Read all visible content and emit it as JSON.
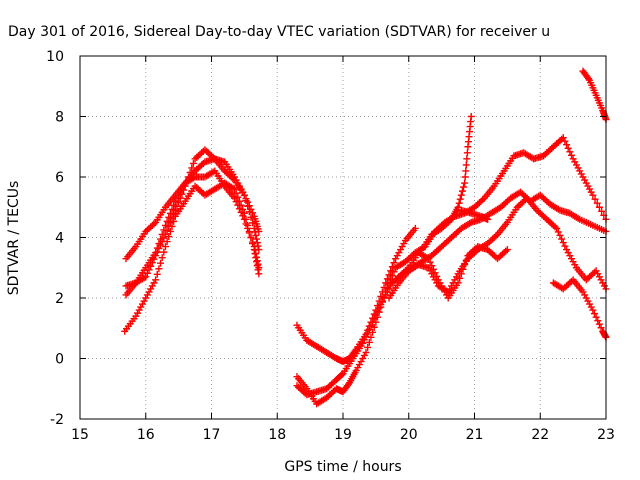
{
  "chart_data": {
    "type": "scatter",
    "title": "Day 301 of 2016, Sidereal Day-to-day VTEC variation (SDTVAR) for receiver u",
    "xlabel": "GPS time / hours",
    "ylabel": "SDTVAR / TECUs",
    "xlim": [
      15,
      23
    ],
    "ylim": [
      -2,
      10
    ],
    "xticks": [
      15,
      16,
      17,
      18,
      19,
      20,
      21,
      22,
      23
    ],
    "yticks": [
      -2,
      0,
      2,
      4,
      6,
      8,
      10
    ],
    "grid": true,
    "marker": "plus",
    "color": "#ff0000",
    "series": [
      {
        "x": [
          15.7,
          15.85,
          16.0,
          16.15,
          16.3,
          16.45,
          16.6,
          16.75,
          16.9,
          17.05,
          17.2,
          17.35,
          17.5,
          17.65,
          17.72
        ],
        "y": [
          3.3,
          3.7,
          4.2,
          4.5,
          5.0,
          5.4,
          5.8,
          6.2,
          6.5,
          6.6,
          6.5,
          6.0,
          5.4,
          4.7,
          4.2
        ]
      },
      {
        "x": [
          15.7,
          15.85,
          16.0,
          16.15,
          16.3,
          16.45,
          16.6,
          16.75,
          16.9,
          17.05,
          17.2,
          17.35,
          17.5,
          17.65,
          17.72
        ],
        "y": [
          2.4,
          2.5,
          2.7,
          3.4,
          4.1,
          4.9,
          5.7,
          6.6,
          6.9,
          6.6,
          6.2,
          5.9,
          5.4,
          4.3,
          3.6
        ]
      },
      {
        "x": [
          15.7,
          15.85,
          16.0,
          16.15,
          16.3,
          16.45,
          16.6,
          16.75,
          16.9,
          17.05,
          17.2,
          17.35,
          17.5,
          17.65,
          17.72
        ],
        "y": [
          2.1,
          2.5,
          3.0,
          3.5,
          4.4,
          5.2,
          5.8,
          6.0,
          6.0,
          6.2,
          5.7,
          5.3,
          4.6,
          3.7,
          3.0
        ]
      },
      {
        "x": [
          15.68,
          15.85,
          16.0,
          16.15,
          16.3,
          16.45,
          16.6,
          16.75,
          16.9,
          17.05,
          17.2,
          17.35,
          17.5,
          17.65,
          17.72
        ],
        "y": [
          0.9,
          1.4,
          2.0,
          2.6,
          3.7,
          4.7,
          5.2,
          5.7,
          5.4,
          5.6,
          5.8,
          5.6,
          4.8,
          3.6,
          2.8
        ]
      },
      {
        "x": [
          18.3,
          18.45,
          18.6,
          18.75,
          18.9,
          19.0,
          19.1,
          19.2,
          19.35,
          19.5,
          19.65,
          19.8,
          19.95,
          20.1
        ],
        "y": [
          1.1,
          0.6,
          0.4,
          0.2,
          0.0,
          -0.1,
          0.0,
          0.3,
          0.8,
          1.6,
          2.5,
          3.3,
          3.9,
          4.3
        ]
      },
      {
        "x": [
          18.3,
          18.45,
          18.6,
          18.75,
          18.9,
          19.0,
          19.1,
          19.2,
          19.35,
          19.5,
          19.65,
          19.8,
          19.95,
          20.1,
          20.25,
          20.4,
          20.55,
          20.7,
          20.85,
          21.0,
          21.15,
          21.3,
          21.45,
          21.6,
          21.75,
          21.9,
          22.05,
          22.2,
          22.35,
          22.5,
          22.65,
          22.8,
          23.0
        ],
        "y": [
          -0.6,
          -1.0,
          -1.5,
          -1.3,
          -1.0,
          -1.1,
          -0.8,
          -0.4,
          0.2,
          1.2,
          2.2,
          3.0,
          3.2,
          3.5,
          3.7,
          4.2,
          4.5,
          4.7,
          4.8,
          5.0,
          5.3,
          5.7,
          6.2,
          6.7,
          6.8,
          6.6,
          6.7,
          7.0,
          7.3,
          6.6,
          6.0,
          5.4,
          4.6
        ]
      },
      {
        "x": [
          18.3,
          18.45,
          18.6,
          18.75,
          18.9,
          19.0,
          19.15,
          19.3,
          19.45,
          19.6,
          19.75,
          19.9,
          20.05,
          20.2,
          20.35,
          20.5,
          20.65,
          20.8,
          20.95,
          21.1,
          21.25,
          21.4,
          21.55,
          21.7,
          21.85,
          22.0,
          22.15,
          22.3,
          22.45,
          22.6,
          22.8,
          23.0
        ],
        "y": [
          -0.9,
          -1.2,
          -1.1,
          -1.0,
          -0.7,
          -0.5,
          0.0,
          0.5,
          1.2,
          1.9,
          2.5,
          2.8,
          3.0,
          3.2,
          3.4,
          3.7,
          4.0,
          4.3,
          4.5,
          4.6,
          4.8,
          5.0,
          5.3,
          5.5,
          5.2,
          5.4,
          5.1,
          4.9,
          4.8,
          4.6,
          4.4,
          4.2
        ]
      },
      {
        "x": [
          19.7,
          19.85,
          20.0,
          20.15,
          20.3,
          20.45,
          20.6,
          20.75,
          20.9,
          21.05,
          21.2,
          21.35,
          21.5,
          21.65,
          21.8,
          21.95,
          22.1,
          22.25,
          22.4,
          22.55,
          22.7,
          22.85,
          23.0
        ],
        "y": [
          2.0,
          2.5,
          2.9,
          3.1,
          3.0,
          2.4,
          2.2,
          2.8,
          3.3,
          3.6,
          3.8,
          4.1,
          4.5,
          5.0,
          5.3,
          4.9,
          4.6,
          4.3,
          3.6,
          3.0,
          2.6,
          2.9,
          2.3
        ]
      },
      {
        "x": [
          19.85,
          20.0,
          20.15,
          20.3,
          20.45,
          20.6,
          20.75,
          20.9,
          21.05,
          21.2,
          21.35,
          21.5
        ],
        "y": [
          2.7,
          3.0,
          3.5,
          3.3,
          2.6,
          2.0,
          2.5,
          3.4,
          3.7,
          3.6,
          3.3,
          3.6
        ]
      },
      {
        "x": [
          20.2,
          20.35,
          20.5,
          20.65,
          20.75,
          20.85,
          20.9,
          20.95
        ],
        "y": [
          3.6,
          4.1,
          4.3,
          4.6,
          5.0,
          5.8,
          7.0,
          8.0
        ]
      },
      {
        "x": [
          20.8,
          20.95,
          21.1,
          21.2
        ],
        "y": [
          4.9,
          4.8,
          4.7,
          4.6
        ]
      },
      {
        "x": [
          22.2,
          22.35,
          22.5,
          22.65,
          22.8,
          22.95,
          23.0
        ],
        "y": [
          2.5,
          2.3,
          2.6,
          2.2,
          1.6,
          0.9,
          0.7
        ]
      },
      {
        "x": [
          22.65,
          22.75,
          22.85,
          22.95,
          23.0
        ],
        "y": [
          9.5,
          9.2,
          8.7,
          8.2,
          7.9
        ]
      }
    ]
  }
}
